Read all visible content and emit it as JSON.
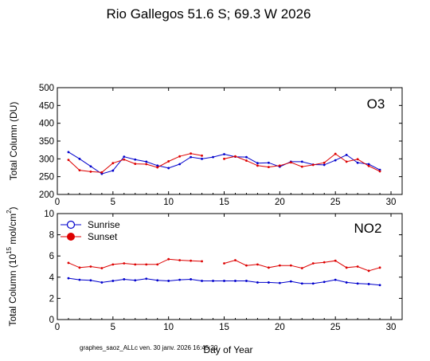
{
  "title": "Rio Gallegos  51.6 S; 69.3 W   2026",
  "footer": "graphes_saoz_ALLc   ven. 30 janv. 2026 16:45:20",
  "colors": {
    "sunrise": "#0000cc",
    "sunset": "#dd0000",
    "axis": "#000000"
  },
  "chart_data": [
    {
      "type": "line",
      "panel_tag": "O3",
      "xlabel": "",
      "ylabel": "Total Column  (DU)",
      "xlim": [
        0,
        31
      ],
      "ylim": [
        200,
        500
      ],
      "xticks": [
        0,
        5,
        10,
        15,
        20,
        25,
        30
      ],
      "yticks": [
        200,
        250,
        300,
        350,
        400,
        450,
        500
      ],
      "xtick_labels": [
        "0",
        "5",
        "10",
        "15",
        "20",
        "25",
        "30"
      ],
      "ytick_labels": [
        "200",
        "250",
        "300",
        "350",
        "400",
        "450",
        "500"
      ],
      "grid": false,
      "series": [
        {
          "name": "Sunrise",
          "color": "#0000cc",
          "segments": [
            {
              "x": [
                1,
                2,
                3,
                4,
                5,
                6,
                7,
                8,
                9,
                10,
                11,
                12,
                13,
                14,
                15,
                16,
                17,
                18,
                19,
                20,
                21,
                22,
                23,
                24,
                25,
                26,
                27,
                28,
                29
              ],
              "y": [
                319,
                300,
                279,
                258,
                267,
                306,
                298,
                292,
                281,
                274,
                285,
                305,
                300,
                305,
                313,
                306,
                305,
                288,
                289,
                278,
                292,
                292,
                284,
                283,
                296,
                311,
                289,
                285,
                269
              ]
            }
          ]
        },
        {
          "name": "Sunset",
          "color": "#dd0000",
          "segments": [
            {
              "x": [
                1,
                2,
                3,
                4,
                5,
                6,
                7,
                8,
                9,
                10,
                11,
                12,
                13
              ],
              "y": [
                297,
                268,
                264,
                262,
                288,
                298,
                286,
                285,
                276,
                293,
                307,
                315,
                309
              ]
            },
            {
              "x": [
                15,
                16,
                17,
                18,
                19,
                20,
                21,
                22,
                23,
                24,
                25,
                26,
                27,
                28,
                29
              ],
              "y": [
                300,
                307,
                295,
                281,
                277,
                281,
                290,
                278,
                283,
                289,
                314,
                292,
                299,
                280,
                265
              ]
            }
          ]
        }
      ]
    },
    {
      "type": "line",
      "panel_tag": "NO2",
      "xlabel": "Day of Year",
      "ylabel_prefix": "Total Column (10",
      "ylabel_exp": "15",
      "ylabel_mid": " mol/cm",
      "ylabel_exp2": "2",
      "ylabel_suffix": ")",
      "xlim": [
        0,
        31
      ],
      "ylim": [
        0,
        10
      ],
      "xticks": [
        0,
        5,
        10,
        15,
        20,
        25,
        30
      ],
      "yticks": [
        0,
        2,
        4,
        6,
        8,
        10
      ],
      "xtick_labels": [
        "0",
        "5",
        "10",
        "15",
        "20",
        "25",
        "30"
      ],
      "ytick_labels": [
        "0",
        "2",
        "4",
        "6",
        "8",
        "10"
      ],
      "grid": false,
      "legend_position": "top-left",
      "series": [
        {
          "name": "Sunrise",
          "color": "#0000cc",
          "segments": [
            {
              "x": [
                1,
                2,
                3,
                4,
                5,
                6,
                7,
                8,
                9,
                10,
                11,
                12,
                13,
                14,
                15,
                16,
                17,
                18,
                19,
                20,
                21,
                22,
                23,
                24,
                25,
                26,
                27,
                28,
                29
              ],
              "y": [
                3.9,
                3.75,
                3.7,
                3.5,
                3.65,
                3.8,
                3.7,
                3.85,
                3.7,
                3.65,
                3.75,
                3.8,
                3.65,
                3.65,
                3.65,
                3.65,
                3.65,
                3.5,
                3.5,
                3.45,
                3.6,
                3.4,
                3.4,
                3.55,
                3.75,
                3.5,
                3.4,
                3.35,
                3.25
              ]
            }
          ]
        },
        {
          "name": "Sunset",
          "color": "#dd0000",
          "segments": [
            {
              "x": [
                1,
                2,
                3,
                4,
                5,
                6,
                7,
                8,
                9,
                10,
                11,
                12,
                13
              ],
              "y": [
                5.35,
                4.9,
                5.0,
                4.85,
                5.2,
                5.3,
                5.2,
                5.2,
                5.2,
                5.7,
                5.6,
                5.55,
                5.5
              ]
            },
            {
              "x": [
                15,
                16,
                17,
                18,
                19,
                20,
                21,
                22,
                23,
                24,
                25,
                26,
                27,
                28,
                29
              ],
              "y": [
                5.3,
                5.6,
                5.1,
                5.2,
                4.9,
                5.1,
                5.1,
                4.85,
                5.3,
                5.4,
                5.55,
                4.9,
                5.0,
                4.6,
                4.9
              ]
            }
          ]
        }
      ]
    }
  ]
}
